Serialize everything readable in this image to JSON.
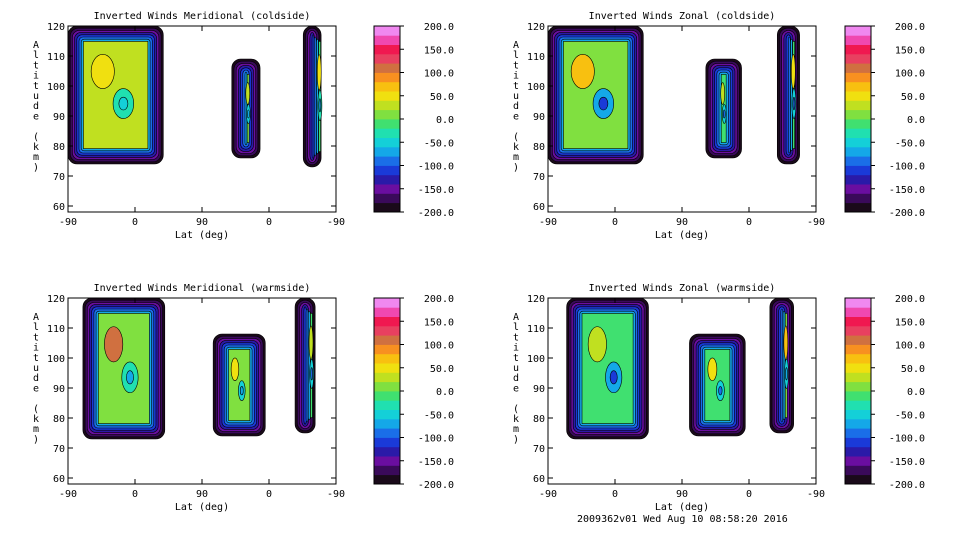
{
  "chart_data": [
    {
      "type": "heatmap",
      "title": "Inverted Winds Meridional (coldside)",
      "xlabel": "Lat (deg)",
      "ylabel": "Altitude (km)",
      "x_ticks": [
        "-90",
        "0",
        "90",
        "0",
        "-90"
      ],
      "y_ticks": [
        "60",
        "70",
        "80",
        "90",
        "100",
        "110",
        "120"
      ],
      "ylim": [
        58,
        120
      ],
      "colorbar": {
        "ticks": [
          "200.0",
          "150.0",
          "100.0",
          "50.0",
          "0.0",
          "-50.0",
          "-100.0",
          "-150.0",
          "-200.0"
        ],
        "range": [
          -200,
          200
        ]
      },
      "blocks": [
        {
          "lat_start": -90,
          "lat_end": 38,
          "alt_bottom": 74,
          "alt_top": 120,
          "mean": 20,
          "warm_spot": 55,
          "cool_spot": -35
        },
        {
          "lat_start": 130,
          "lat_end": 168,
          "alt_bottom": 76,
          "alt_top": 109,
          "mean": 0,
          "warm_spot": 20,
          "cool_spot": -50
        },
        {
          "lat_start": 226,
          "lat_end": 250,
          "alt_bottom": 73,
          "alt_top": 120,
          "mean": -10,
          "warm_spot": 40,
          "cool_spot": -40
        }
      ]
    },
    {
      "type": "heatmap",
      "title": "Inverted Winds Zonal (coldside)",
      "xlabel": "Lat (deg)",
      "ylabel": "Altitude (km)",
      "x_ticks": [
        "-90",
        "0",
        "90",
        "0",
        "-90"
      ],
      "y_ticks": [
        "60",
        "70",
        "80",
        "90",
        "100",
        "110",
        "120"
      ],
      "ylim": [
        58,
        120
      ],
      "colorbar": {
        "ticks": [
          "200.0",
          "150.0",
          "100.0",
          "50.0",
          "0.0",
          "-50.0",
          "-100.0",
          "-150.0",
          "-200.0"
        ],
        "range": [
          -200,
          200
        ]
      },
      "blocks": [
        {
          "lat_start": -90,
          "lat_end": 38,
          "alt_bottom": 74,
          "alt_top": 120,
          "mean": 0,
          "warm_spot": 60,
          "cool_spot": -80
        },
        {
          "lat_start": 122,
          "lat_end": 170,
          "alt_bottom": 76,
          "alt_top": 109,
          "mean": -10,
          "warm_spot": 30,
          "cool_spot": -60
        },
        {
          "lat_start": 218,
          "lat_end": 248,
          "alt_bottom": 74,
          "alt_top": 120,
          "mean": -20,
          "warm_spot": 40,
          "cool_spot": -60
        }
      ]
    },
    {
      "type": "heatmap",
      "title": "Inverted Winds Meridional (warmside)",
      "xlabel": "Lat (deg)",
      "ylabel": "Altitude (km)",
      "x_ticks": [
        "-90",
        "0",
        "90",
        "0",
        "-90"
      ],
      "y_ticks": [
        "60",
        "70",
        "80",
        "90",
        "100",
        "110",
        "120"
      ],
      "ylim": [
        58,
        120
      ],
      "colorbar": {
        "ticks": [
          "200.0",
          "150.0",
          "100.0",
          "50.0",
          "0.0",
          "-50.0",
          "-100.0",
          "-150.0",
          "-200.0"
        ],
        "range": [
          -200,
          200
        ]
      },
      "blocks": [
        {
          "lat_start": -70,
          "lat_end": 40,
          "alt_bottom": 73,
          "alt_top": 120,
          "mean": 10,
          "warm_spot": 110,
          "cool_spot": -40
        },
        {
          "lat_start": 105,
          "lat_end": 175,
          "alt_bottom": 74,
          "alt_top": 108,
          "mean": 0,
          "warm_spot": 40,
          "cool_spot": -50
        },
        {
          "lat_start": 215,
          "lat_end": 242,
          "alt_bottom": 75,
          "alt_top": 120,
          "mean": -20,
          "warm_spot": 30,
          "cool_spot": -60
        }
      ]
    },
    {
      "type": "heatmap",
      "title": "Inverted Winds Zonal (warmside)",
      "xlabel": "Lat (deg)",
      "ylabel": "Altitude (km)",
      "x_ticks": [
        "-90",
        "0",
        "90",
        "0",
        "-90"
      ],
      "y_ticks": [
        "60",
        "70",
        "80",
        "90",
        "100",
        "110",
        "120"
      ],
      "ylim": [
        58,
        120
      ],
      "colorbar": {
        "ticks": [
          "200.0",
          "150.0",
          "100.0",
          "50.0",
          "0.0",
          "-50.0",
          "-100.0",
          "-150.0",
          "-200.0"
        ],
        "range": [
          -200,
          200
        ]
      },
      "blocks": [
        {
          "lat_start": -65,
          "lat_end": 45,
          "alt_bottom": 73,
          "alt_top": 120,
          "mean": -20,
          "warm_spot": 30,
          "cool_spot": -80
        },
        {
          "lat_start": 100,
          "lat_end": 175,
          "alt_bottom": 74,
          "alt_top": 108,
          "mean": -10,
          "warm_spot": 40,
          "cool_spot": -60
        },
        {
          "lat_start": 208,
          "lat_end": 240,
          "alt_bottom": 75,
          "alt_top": 120,
          "mean": 0,
          "warm_spot": 70,
          "cool_spot": -50
        }
      ]
    }
  ],
  "footer": "2009362v01 Wed Aug 10 08:58:20 2016"
}
